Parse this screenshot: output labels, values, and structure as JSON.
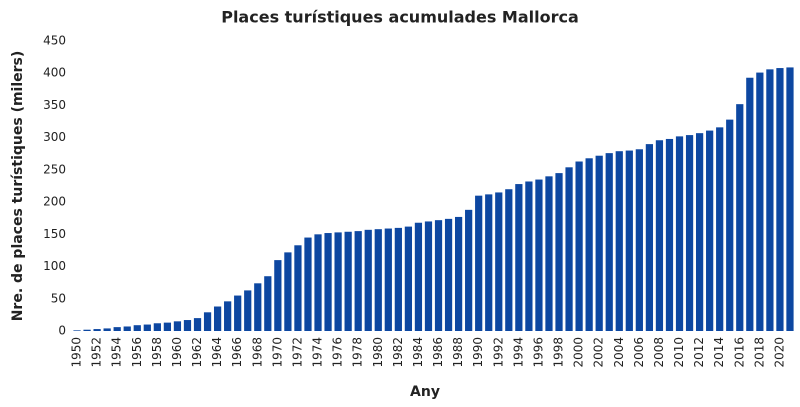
{
  "chart_data": {
    "type": "bar",
    "title": "Places turístiques acumulades Mallorca",
    "x_label": "Any",
    "y_label": "Nre. de places turístiques (milers)",
    "categories": [
      "1950",
      null,
      "1952",
      null,
      "1954",
      null,
      "1956",
      null,
      "1958",
      null,
      "1960",
      null,
      "1962",
      null,
      "1964",
      null,
      "1966",
      null,
      "1968",
      null,
      "1970",
      null,
      "1972",
      null,
      "1974",
      null,
      "1976",
      null,
      "1978",
      null,
      "1980",
      null,
      "1982",
      null,
      "1984",
      null,
      "1986",
      null,
      "1988",
      null,
      "1990",
      null,
      "1992",
      null,
      "1994",
      null,
      "1996",
      null,
      "1998",
      null,
      "2000",
      null,
      "2002",
      null,
      "2004",
      null,
      "2006",
      null,
      "2008",
      null,
      "2010",
      null,
      "2012",
      null,
      "2014",
      null,
      "2016",
      null,
      "2018",
      null,
      "2020",
      null
    ],
    "values": [
      1,
      2,
      3,
      4,
      6,
      7,
      9,
      10,
      12,
      13,
      15,
      17,
      20,
      29,
      38,
      46,
      55,
      63,
      74,
      85,
      110,
      122,
      133,
      145,
      150,
      152,
      153,
      154,
      155,
      157,
      158,
      159,
      160,
      162,
      168,
      170,
      172,
      174,
      177,
      188,
      210,
      212,
      215,
      220,
      228,
      232,
      235,
      240,
      245,
      254,
      263,
      268,
      272,
      276,
      279,
      280,
      282,
      290,
      296,
      298,
      302,
      304,
      307,
      311,
      316,
      328,
      352,
      393,
      401,
      406,
      408,
      409
    ],
    "color": "#0d47a1",
    "ylim": [
      0,
      450
    ],
    "yticks": [
      0,
      50,
      100,
      150,
      200,
      250,
      300,
      350,
      400,
      450
    ],
    "grid": false
  }
}
